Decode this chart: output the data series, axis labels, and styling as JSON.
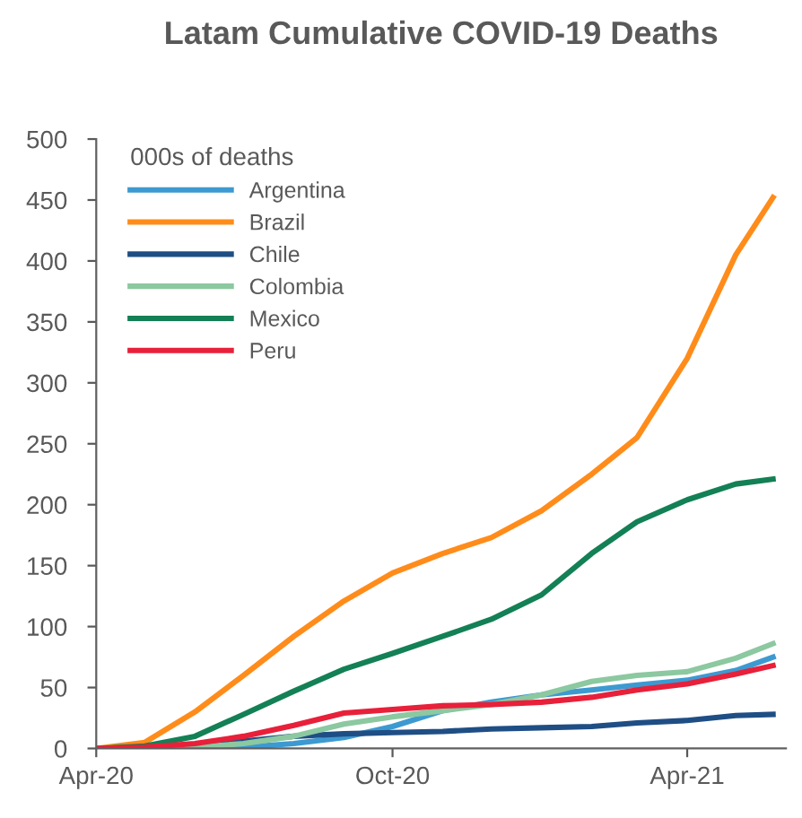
{
  "chart_data": {
    "type": "line",
    "title": "Latam Cumulative COVID-19 Deaths",
    "legend_title": "000s of deaths",
    "x": [
      "2020-04-01",
      "2020-05-01",
      "2020-06-01",
      "2020-07-01",
      "2020-08-01",
      "2020-09-01",
      "2020-10-01",
      "2020-11-01",
      "2020-12-01",
      "2021-01-01",
      "2021-02-01",
      "2021-03-01",
      "2021-04-01",
      "2021-05-01",
      "2021-05-24"
    ],
    "series": [
      {
        "name": "Argentina",
        "color": "#3d9ad1",
        "values": [
          null,
          null,
          0,
          1,
          4,
          9,
          18,
          31,
          38,
          44,
          48,
          52,
          56,
          64,
          75
        ]
      },
      {
        "name": "Brazil",
        "color": "#ff8c1a",
        "values": [
          0,
          5,
          30,
          60,
          92,
          121,
          144,
          160,
          173,
          195,
          225,
          255,
          320,
          405,
          452
        ]
      },
      {
        "name": "Chile",
        "color": "#1f4e85",
        "values": [
          null,
          null,
          1,
          6,
          10,
          12,
          13,
          14,
          16,
          17,
          18,
          21,
          23,
          27,
          28
        ]
      },
      {
        "name": "Colombia",
        "color": "#8cc8a0",
        "values": [
          0,
          0,
          1,
          4,
          10,
          20,
          26,
          31,
          36,
          44,
          55,
          60,
          63,
          74,
          86
        ]
      },
      {
        "name": "Mexico",
        "color": "#138055",
        "values": [
          0,
          2,
          10,
          28,
          47,
          65,
          78,
          92,
          106,
          126,
          160,
          186,
          204,
          217,
          221
        ]
      },
      {
        "name": "Peru",
        "color": "#e8203a",
        "values": [
          0,
          1,
          4,
          10,
          19,
          29,
          32,
          35,
          36,
          38,
          42,
          48,
          53,
          61,
          68
        ]
      }
    ],
    "xlim": [
      "2020-04-01",
      "2021-06-01"
    ],
    "xticks": [
      {
        "value": "2020-04-01",
        "label": "Apr-20"
      },
      {
        "value": "2020-10-01",
        "label": "Oct-20"
      },
      {
        "value": "2021-04-01",
        "label": "Apr-21"
      }
    ],
    "ylim": [
      0,
      500
    ],
    "yticks": [
      0,
      50,
      100,
      150,
      200,
      250,
      300,
      350,
      400,
      450,
      500
    ],
    "grid": false,
    "legend": "top left",
    "marker": "none",
    "line_style": "solid"
  }
}
